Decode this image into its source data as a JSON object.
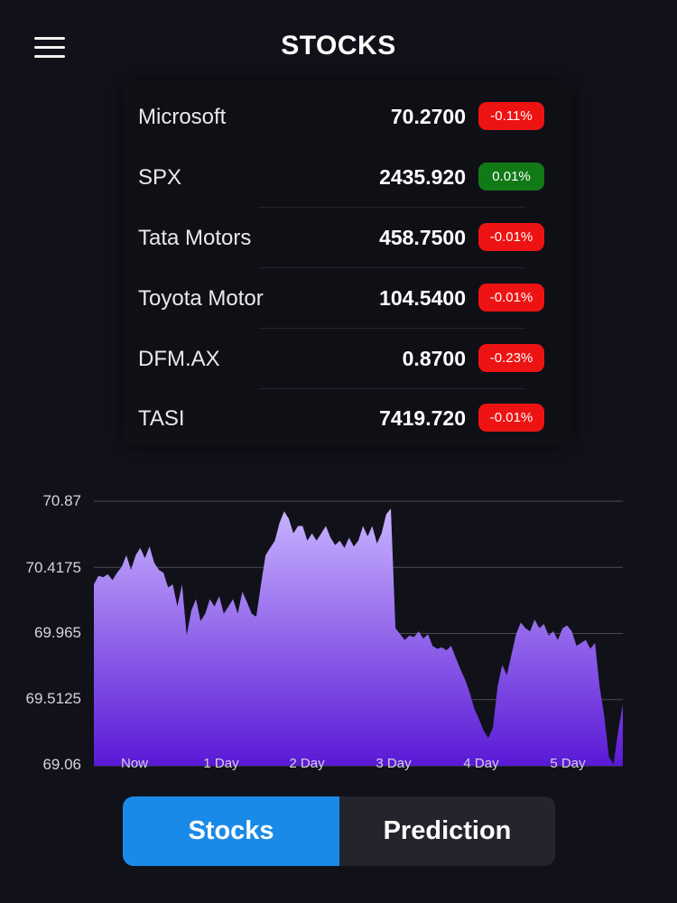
{
  "header": {
    "title": "STOCKS",
    "menu_icon": "hamburger-menu-icon"
  },
  "stocks": [
    {
      "name": "Microsoft",
      "price": "70.2700",
      "change": "-0.11%",
      "direction": "down"
    },
    {
      "name": "SPX",
      "price": "2435.920",
      "change": "0.01%",
      "direction": "up"
    },
    {
      "name": "Tata Motors",
      "price": "458.7500",
      "change": "-0.01%",
      "direction": "down"
    },
    {
      "name": "Toyota Motor",
      "price": "104.5400",
      "change": "-0.01%",
      "direction": "down"
    },
    {
      "name": "DFM.AX",
      "price": "0.8700",
      "change": "-0.23%",
      "direction": "down"
    },
    {
      "name": "TASI",
      "price": "7419.720",
      "change": "-0.01%",
      "direction": "up"
    }
  ],
  "colors": {
    "background": "#11111a",
    "badge_down": "#ee1313",
    "badge_up": "#117a17",
    "chart_top": "#c9b3ff",
    "chart_bottom": "#5a19d6",
    "tab_active": "#1a8ae8",
    "tab_inactive": "#24242c"
  },
  "chart_data": {
    "type": "area",
    "y_ticks": [
      "70.87",
      "70.4175",
      "69.965",
      "69.5125",
      "69.06"
    ],
    "x_ticks": [
      "Now",
      "1 Day",
      "2 Day",
      "3 Day",
      "4 Day",
      "5 Day"
    ],
    "ylim": [
      69.06,
      70.87
    ],
    "grid": "horizontal",
    "x": [
      0,
      0.05,
      0.1,
      0.15,
      0.2,
      0.25,
      0.3,
      0.35,
      0.4,
      0.45,
      0.5,
      0.55,
      0.6,
      0.65,
      0.7,
      0.75,
      0.8,
      0.85,
      0.9,
      0.95,
      1.0,
      1.05,
      1.1,
      1.15,
      1.2,
      1.25,
      1.3,
      1.35,
      1.4,
      1.45,
      1.5,
      1.55,
      1.6,
      1.65,
      1.7,
      1.75,
      1.8,
      1.85,
      1.9,
      1.95,
      2.0,
      2.05,
      2.1,
      2.15,
      2.2,
      2.25,
      2.3,
      2.35,
      2.4,
      2.45,
      2.5,
      2.55,
      2.6,
      2.65,
      2.7,
      2.75,
      2.8,
      2.85,
      2.9,
      2.95,
      3.0,
      3.05,
      3.1,
      3.15,
      3.2,
      3.25,
      3.3,
      3.35,
      3.4,
      3.45,
      3.5,
      3.55,
      3.6,
      3.65,
      3.7,
      3.75,
      3.8,
      3.85,
      3.9,
      3.95,
      4.0,
      4.05,
      4.1,
      4.15,
      4.2,
      4.25,
      4.3,
      4.35,
      4.4,
      4.45,
      4.5,
      4.55,
      4.6,
      4.65,
      4.7,
      4.75,
      4.8,
      4.85,
      4.9,
      4.95,
      5.0,
      5.05,
      5.1,
      5.15,
      5.2,
      5.25,
      5.3,
      5.35,
      5.4,
      5.45,
      5.5,
      5.55,
      5.6,
      5.65,
      5.7
    ],
    "values": [
      70.3,
      70.36,
      70.35,
      70.37,
      70.33,
      70.38,
      70.42,
      70.5,
      70.4,
      70.5,
      70.55,
      70.48,
      70.56,
      70.45,
      70.4,
      70.38,
      70.28,
      70.3,
      70.15,
      70.3,
      69.95,
      70.12,
      70.2,
      70.05,
      70.1,
      70.2,
      70.15,
      70.22,
      70.1,
      70.15,
      70.2,
      70.1,
      70.25,
      70.18,
      70.1,
      70.08,
      70.3,
      70.5,
      70.55,
      70.6,
      70.72,
      70.8,
      70.75,
      70.65,
      70.7,
      70.7,
      70.6,
      70.65,
      70.6,
      70.65,
      70.7,
      70.62,
      70.57,
      70.6,
      70.55,
      70.62,
      70.56,
      70.6,
      70.7,
      70.63,
      70.7,
      70.58,
      70.65,
      70.78,
      70.82,
      70.0,
      69.96,
      69.92,
      69.95,
      69.94,
      69.98,
      69.93,
      69.96,
      69.88,
      69.86,
      69.87,
      69.85,
      69.88,
      69.8,
      69.72,
      69.65,
      69.56,
      69.45,
      69.38,
      69.3,
      69.25,
      69.32,
      69.6,
      69.75,
      69.68,
      69.82,
      69.96,
      70.04,
      70.0,
      69.98,
      70.06,
      70.0,
      70.03,
      69.95,
      69.98,
      69.92,
      70.0,
      70.02,
      69.98,
      69.88,
      69.9,
      69.92,
      69.86,
      69.9,
      69.6,
      69.4,
      69.12,
      69.07,
      69.3,
      69.48
    ]
  },
  "tabs": [
    {
      "label": "Stocks",
      "active": true
    },
    {
      "label": "Prediction",
      "active": false
    }
  ]
}
